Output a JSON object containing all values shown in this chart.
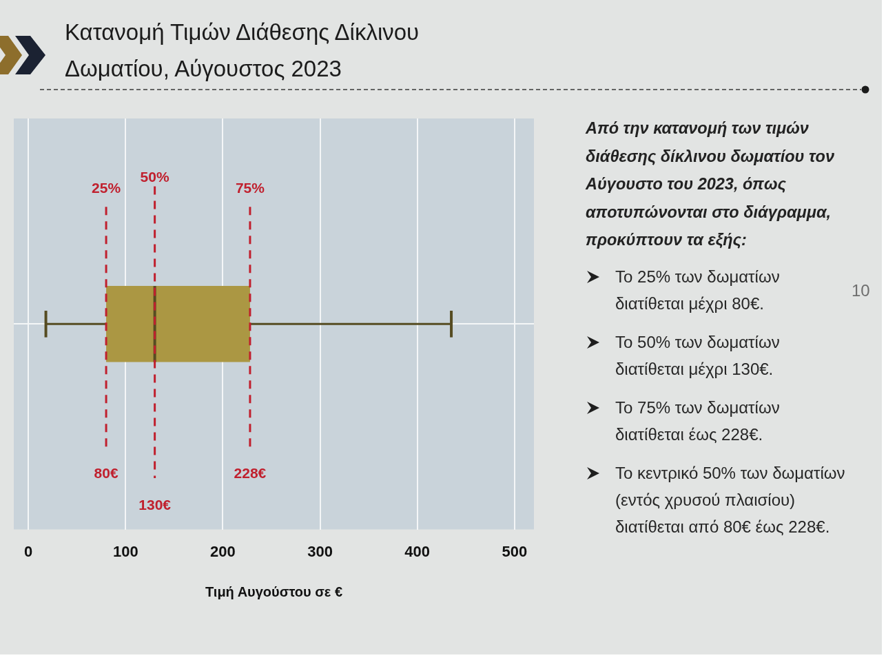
{
  "chart_data": {
    "type": "box",
    "orientation": "horizontal",
    "title": "Κατανομή Τιμών Διάθεσης Δίκλινου\nΔωματίου, Αύγουστος 2023",
    "xlabel": "Τιμή Αυγούστου σε €",
    "categories": [
      null
    ],
    "boxes": [
      {
        "low": 18,
        "q1": 80,
        "median": 130,
        "q3": 228,
        "high": 435
      }
    ],
    "color": "#ab9743",
    "xlim": [
      -15,
      520
    ],
    "xticks": [
      0,
      100,
      200,
      300,
      400,
      500
    ],
    "grid": true,
    "ref_lines": [
      {
        "axis": "x",
        "value": 80,
        "label": "80€",
        "color": "#c0202e",
        "line_style": "dashed"
      },
      {
        "axis": "x",
        "value": 130,
        "label": "130€",
        "color": "#c0202e",
        "line_style": "dashed"
      },
      {
        "axis": "x",
        "value": 228,
        "label": "228€",
        "color": "#c0202e",
        "line_style": "dashed"
      }
    ],
    "annotations": [
      "25%",
      "50%",
      "75%",
      "Από την κατανομή των τιμών\nδιάθεσης δίκλινου δωματίου τον\nΑύγουστο του 2023, όπως\nαποτυπώνονται στο διάγραμμα,\nπροκύπτουν τα εξής:",
      "Το 25% των δωματίων\nδιατίθεται μέχρι 80€.",
      "Το 50% των δωματίων\nδιατίθεται μέχρι 130€.",
      "Το 75% των δωματίων\nδιατίθεται έως 228€.",
      "Το κεντρικό 50% των δωματίων\n(εντός χρυσού πλαισίου)\nδιατίθεται από 80€ έως 228€.",
      "10"
    ]
  }
}
